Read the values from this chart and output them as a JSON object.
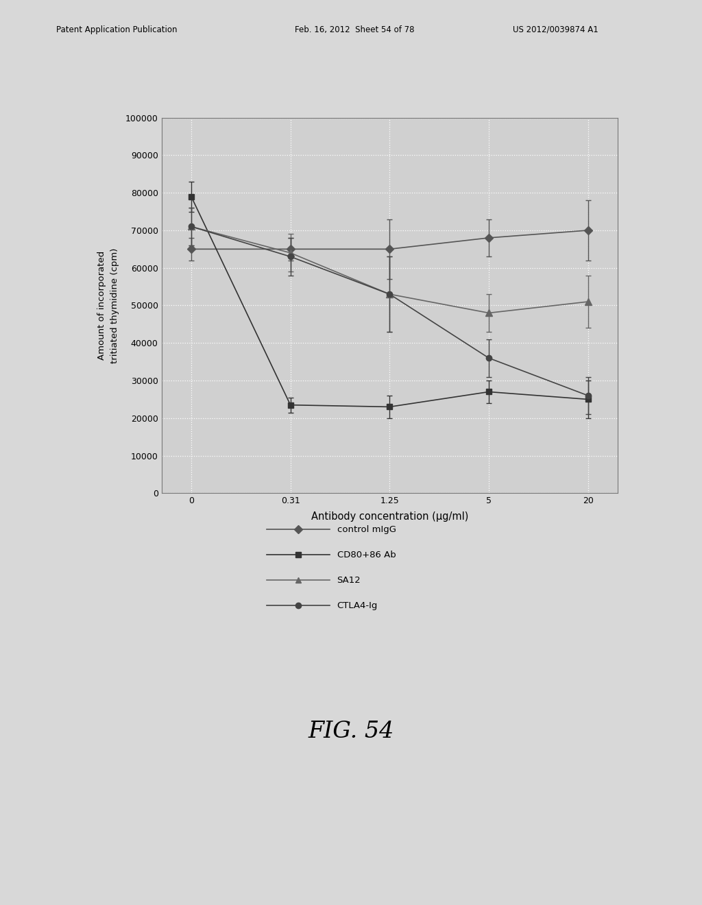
{
  "x_positions": [
    0,
    1,
    2,
    3,
    4
  ],
  "x_labels": [
    "0",
    "0.31",
    "1.25",
    "5",
    "20"
  ],
  "series": {
    "control_mIgG": {
      "label": "control mIgG",
      "y": [
        65000,
        65000,
        65000,
        68000,
        70000
      ],
      "yerr": [
        3000,
        3000,
        8000,
        5000,
        8000
      ],
      "color": "#555555",
      "marker": "D",
      "linestyle": "-"
    },
    "CD80_86_Ab": {
      "label": "CD80+86 Ab",
      "y": [
        79000,
        23500,
        23000,
        27000,
        25000
      ],
      "yerr": [
        4000,
        2000,
        3000,
        3000,
        5000
      ],
      "color": "#333333",
      "marker": "s",
      "linestyle": "-"
    },
    "SA12": {
      "label": "SA12",
      "y": [
        71000,
        64000,
        53000,
        48000,
        51000
      ],
      "yerr": [
        5000,
        5000,
        10000,
        5000,
        7000
      ],
      "color": "#666666",
      "marker": "^",
      "linestyle": "-"
    },
    "CTLA4_Ig": {
      "label": "CTLA4-Ig",
      "y": [
        71000,
        63000,
        53000,
        36000,
        26000
      ],
      "yerr": [
        5000,
        5000,
        10000,
        5000,
        5000
      ],
      "color": "#444444",
      "marker": "o",
      "linestyle": "-"
    }
  },
  "ylabel": "Amount of incorporated\ntritiated thymidine (cpm)",
  "xlabel": "Antibody concentration (μg/ml)",
  "ylim": [
    0,
    100000
  ],
  "yticks": [
    0,
    10000,
    20000,
    30000,
    40000,
    50000,
    60000,
    70000,
    80000,
    90000,
    100000
  ],
  "ytick_labels": [
    "0",
    "10000",
    "20000",
    "30000",
    "40000",
    "50000",
    "60000",
    "70000",
    "80000",
    "90000",
    "100000"
  ],
  "fig_caption": "FIG. 54",
  "header_left": "Patent Application Publication",
  "header_mid": "Feb. 16, 2012  Sheet 54 of 78",
  "header_right": "US 2012/0039874 A1",
  "background_color": "#d8d8d8",
  "plot_bg_color": "#d0d0d0",
  "legend_items": [
    {
      "label": "control mIgG",
      "marker": "D",
      "color": "#555555"
    },
    {
      "label": "CD80+86 Ab",
      "marker": "s",
      "color": "#333333"
    },
    {
      "label": "SA12",
      "marker": "^",
      "color": "#666666"
    },
    {
      "label": "CTLA4-Ig",
      "marker": "o",
      "color": "#444444"
    }
  ]
}
